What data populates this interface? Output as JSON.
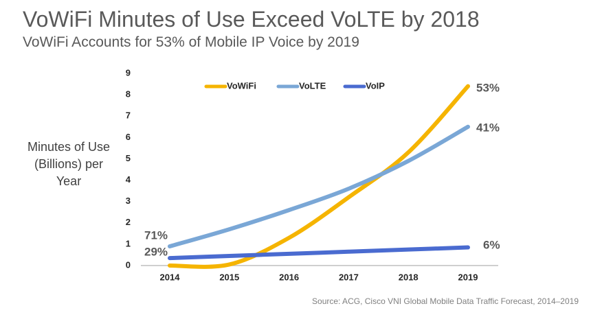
{
  "chart_data": {
    "type": "line",
    "title": "VoWiFi Minutes of Use Exceed VoLTE by 2018",
    "subtitle": "VoWiFi Accounts for 53% of Mobile IP Voice by 2019",
    "y_label": "Minutes of Use (Billions) per Year",
    "source": "Source: ACG, Cisco VNI Global Mobile Data Traffic Forecast, 2014–2019",
    "categories": [
      "2014",
      "2015",
      "2016",
      "2017",
      "2018",
      "2019"
    ],
    "series": [
      {
        "name": "VoWiFi",
        "color": "#f5b400",
        "values": [
          0.0,
          0.05,
          1.3,
          3.2,
          5.3,
          8.4
        ]
      },
      {
        "name": "VoLTE",
        "color": "#7aa7d6",
        "values": [
          0.9,
          1.7,
          2.6,
          3.6,
          4.9,
          6.5
        ]
      },
      {
        "name": "VoIP",
        "color": "#4a6bd0",
        "values": [
          0.35,
          0.45,
          0.55,
          0.65,
          0.75,
          0.85
        ]
      }
    ],
    "annotations": [
      "71%",
      "29%",
      "53%",
      "41%",
      "6%"
    ],
    "ylim": [
      0,
      9
    ],
    "yticks": [
      0,
      1,
      2,
      3,
      4,
      5,
      6,
      7,
      8,
      9
    ],
    "grid": false,
    "legend": "top",
    "smooth": true
  }
}
